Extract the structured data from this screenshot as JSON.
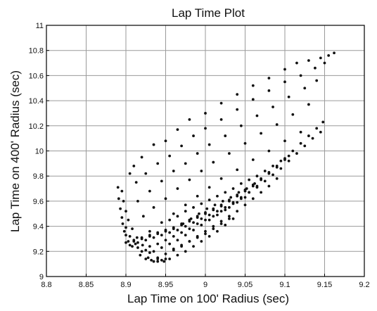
{
  "chart_data": {
    "type": "scatter",
    "title": "Lap Time Plot",
    "xlabel": "Lap Time on 100' Radius (sec)",
    "ylabel": "Lap Time on 400' Radius (sec)",
    "xlim": [
      8.8,
      9.2
    ],
    "ylim": [
      9.0,
      11.0
    ],
    "grid": true,
    "legend": "none",
    "x_ticks": [
      "8.8",
      "8.85",
      "8.9",
      "8.95",
      "9",
      "9.05",
      "9.1",
      "9.15",
      "9.2"
    ],
    "y_ticks": [
      "9",
      "9.2",
      "9.4",
      "9.6",
      "9.8",
      "10",
      "10.2",
      "10.4",
      "10.6",
      "10.8",
      "11"
    ],
    "marker_color": "#111111",
    "series": [
      {
        "points": [
          [
            8.89,
            9.71
          ],
          [
            8.891,
            9.62
          ],
          [
            8.893,
            9.54
          ],
          [
            8.895,
            9.47
          ],
          [
            8.9,
            9.39
          ],
          [
            8.905,
            9.32
          ],
          [
            8.912,
            9.26
          ],
          [
            8.92,
            9.2
          ],
          [
            8.928,
            9.15
          ],
          [
            8.935,
            9.12
          ],
          [
            8.895,
            9.68
          ],
          [
            8.897,
            9.6
          ],
          [
            8.9,
            9.52
          ],
          [
            8.903,
            9.45
          ],
          [
            8.908,
            9.38
          ],
          [
            8.914,
            9.31
          ],
          [
            8.921,
            9.25
          ],
          [
            8.93,
            9.19
          ],
          [
            8.94,
            9.14
          ],
          [
            8.948,
            9.12
          ],
          [
            8.905,
            9.82
          ],
          [
            8.91,
            9.88
          ],
          [
            8.92,
            9.95
          ],
          [
            8.935,
            10.05
          ],
          [
            8.95,
            10.08
          ],
          [
            8.965,
            10.17
          ],
          [
            8.98,
            10.25
          ],
          [
            9.0,
            10.3
          ],
          [
            9.02,
            10.38
          ],
          [
            9.04,
            10.45
          ],
          [
            9.06,
            10.52
          ],
          [
            9.08,
            10.58
          ],
          [
            9.1,
            10.65
          ],
          [
            9.115,
            10.7
          ],
          [
            9.13,
            10.72
          ],
          [
            9.145,
            10.74
          ],
          [
            9.155,
            10.76
          ],
          [
            9.162,
            10.78
          ],
          [
            8.913,
            9.75
          ],
          [
            8.925,
            9.82
          ],
          [
            8.94,
            9.9
          ],
          [
            8.955,
            9.96
          ],
          [
            8.97,
            10.04
          ],
          [
            8.985,
            10.12
          ],
          [
            9.0,
            10.18
          ],
          [
            9.02,
            10.25
          ],
          [
            9.04,
            10.33
          ],
          [
            9.06,
            10.41
          ],
          [
            9.08,
            10.48
          ],
          [
            9.1,
            10.55
          ],
          [
            9.12,
            10.6
          ],
          [
            9.138,
            10.66
          ],
          [
            9.15,
            10.7
          ],
          [
            8.915,
            9.6
          ],
          [
            8.93,
            9.68
          ],
          [
            8.945,
            9.76
          ],
          [
            8.96,
            9.84
          ],
          [
            8.975,
            9.9
          ],
          [
            8.99,
            9.98
          ],
          [
            9.005,
            10.05
          ],
          [
            9.025,
            10.12
          ],
          [
            9.045,
            10.2
          ],
          [
            9.065,
            10.28
          ],
          [
            9.085,
            10.35
          ],
          [
            9.105,
            10.43
          ],
          [
            9.125,
            10.5
          ],
          [
            9.14,
            10.56
          ],
          [
            8.922,
            9.48
          ],
          [
            8.935,
            9.55
          ],
          [
            8.95,
            9.62
          ],
          [
            8.965,
            9.7
          ],
          [
            8.98,
            9.77
          ],
          [
            8.995,
            9.84
          ],
          [
            9.01,
            9.91
          ],
          [
            9.03,
            9.98
          ],
          [
            9.05,
            10.06
          ],
          [
            9.07,
            10.14
          ],
          [
            9.09,
            10.21
          ],
          [
            9.11,
            10.29
          ],
          [
            9.13,
            10.37
          ],
          [
            8.93,
            9.36
          ],
          [
            8.945,
            9.43
          ],
          [
            8.96,
            9.5
          ],
          [
            8.975,
            9.57
          ],
          [
            8.99,
            9.64
          ],
          [
            9.005,
            9.71
          ],
          [
            9.02,
            9.78
          ],
          [
            9.04,
            9.85
          ],
          [
            9.06,
            9.93
          ],
          [
            9.08,
            10.0
          ],
          [
            9.1,
            10.08
          ],
          [
            9.12,
            10.15
          ],
          [
            8.9,
            9.27
          ],
          [
            8.91,
            9.29
          ],
          [
            8.92,
            9.31
          ],
          [
            8.93,
            9.33
          ],
          [
            8.94,
            9.35
          ],
          [
            8.95,
            9.37
          ],
          [
            8.96,
            9.39
          ],
          [
            8.97,
            9.42
          ],
          [
            8.98,
            9.45
          ],
          [
            8.99,
            9.48
          ],
          [
            9.0,
            9.51
          ],
          [
            9.01,
            9.54
          ],
          [
            9.02,
            9.57
          ],
          [
            9.03,
            9.61
          ],
          [
            9.04,
            9.65
          ],
          [
            9.05,
            9.69
          ],
          [
            9.06,
            9.73
          ],
          [
            9.07,
            9.78
          ],
          [
            9.08,
            9.83
          ],
          [
            9.09,
            9.88
          ],
          [
            9.1,
            9.94
          ],
          [
            9.11,
            10.0
          ],
          [
            9.12,
            10.06
          ],
          [
            9.13,
            10.12
          ],
          [
            9.14,
            10.18
          ],
          [
            9.148,
            10.23
          ],
          [
            8.905,
            9.25
          ],
          [
            8.915,
            9.27
          ],
          [
            8.925,
            9.29
          ],
          [
            8.935,
            9.31
          ],
          [
            8.945,
            9.33
          ],
          [
            8.955,
            9.35
          ],
          [
            8.965,
            9.37
          ],
          [
            8.975,
            9.4
          ],
          [
            8.985,
            9.43
          ],
          [
            8.995,
            9.46
          ],
          [
            9.005,
            9.49
          ],
          [
            9.015,
            9.52
          ],
          [
            9.025,
            9.55
          ],
          [
            9.035,
            9.59
          ],
          [
            9.045,
            9.63
          ],
          [
            9.055,
            9.67
          ],
          [
            9.065,
            9.71
          ],
          [
            9.075,
            9.76
          ],
          [
            9.085,
            9.81
          ],
          [
            9.095,
            9.86
          ],
          [
            9.105,
            9.92
          ],
          [
            9.115,
            9.98
          ],
          [
            9.125,
            10.04
          ],
          [
            9.135,
            10.1
          ],
          [
            9.145,
            10.15
          ],
          [
            8.91,
            9.28
          ],
          [
            8.92,
            9.3
          ],
          [
            8.93,
            9.32
          ],
          [
            8.94,
            9.34
          ],
          [
            8.95,
            9.36
          ],
          [
            8.96,
            9.38
          ],
          [
            8.97,
            9.41
          ],
          [
            8.98,
            9.44
          ],
          [
            8.99,
            9.47
          ],
          [
            9.0,
            9.5
          ],
          [
            9.01,
            9.53
          ],
          [
            9.02,
            9.56
          ],
          [
            9.03,
            9.6
          ],
          [
            9.04,
            9.64
          ],
          [
            9.05,
            9.68
          ],
          [
            9.06,
            9.72
          ],
          [
            9.07,
            9.77
          ],
          [
            9.08,
            9.82
          ],
          [
            9.09,
            9.87
          ],
          [
            9.1,
            9.93
          ],
          [
            8.94,
            9.15
          ],
          [
            8.95,
            9.18
          ],
          [
            8.96,
            9.21
          ],
          [
            8.97,
            9.24
          ],
          [
            8.98,
            9.28
          ],
          [
            8.99,
            9.32
          ],
          [
            9.0,
            9.36
          ],
          [
            9.01,
            9.4
          ],
          [
            9.02,
            9.44
          ],
          [
            9.03,
            9.48
          ],
          [
            9.04,
            9.52
          ],
          [
            9.05,
            9.57
          ],
          [
            9.06,
            9.62
          ],
          [
            9.07,
            9.67
          ],
          [
            9.08,
            9.72
          ],
          [
            9.09,
            9.78
          ],
          [
            8.935,
            9.2
          ],
          [
            8.945,
            9.23
          ],
          [
            8.955,
            9.26
          ],
          [
            8.965,
            9.29
          ],
          [
            8.975,
            9.33
          ],
          [
            8.985,
            9.37
          ],
          [
            8.995,
            9.41
          ],
          [
            9.005,
            9.45
          ],
          [
            9.015,
            9.49
          ],
          [
            9.025,
            9.53
          ],
          [
            9.035,
            9.58
          ],
          [
            9.045,
            9.62
          ],
          [
            9.055,
            9.67
          ],
          [
            9.065,
            9.72
          ],
          [
            8.93,
            9.24
          ],
          [
            8.94,
            9.26
          ],
          [
            8.95,
            9.29
          ],
          [
            8.96,
            9.32
          ],
          [
            8.97,
            9.35
          ],
          [
            8.98,
            9.38
          ],
          [
            8.99,
            9.42
          ],
          [
            9.0,
            9.45
          ],
          [
            9.01,
            9.48
          ],
          [
            9.02,
            9.52
          ],
          [
            9.03,
            9.55
          ],
          [
            9.04,
            9.59
          ],
          [
            9.05,
            9.63
          ],
          [
            8.955,
            9.14
          ],
          [
            8.965,
            9.17
          ],
          [
            8.975,
            9.2
          ],
          [
            8.985,
            9.24
          ],
          [
            8.995,
            9.28
          ],
          [
            9.005,
            9.32
          ],
          [
            9.015,
            9.36
          ],
          [
            9.025,
            9.41
          ],
          [
            9.035,
            9.46
          ],
          [
            8.96,
            9.22
          ],
          [
            8.97,
            9.25
          ],
          [
            8.98,
            9.28
          ],
          [
            8.99,
            9.31
          ],
          [
            9.0,
            9.34
          ],
          [
            9.01,
            9.38
          ],
          [
            9.02,
            9.42
          ],
          [
            9.03,
            9.46
          ],
          [
            8.915,
            9.23
          ],
          [
            8.925,
            9.21
          ],
          [
            8.918,
            9.17
          ],
          [
            8.925,
            9.14
          ],
          [
            8.932,
            9.13
          ],
          [
            8.94,
            9.12
          ],
          [
            8.945,
            9.13
          ],
          [
            8.95,
            9.14
          ],
          [
            8.908,
            9.24
          ],
          [
            8.903,
            9.28
          ],
          [
            8.9,
            9.33
          ],
          [
            8.898,
            9.36
          ],
          [
            8.896,
            9.42
          ],
          [
            8.955,
            9.45
          ],
          [
            8.965,
            9.48
          ],
          [
            8.975,
            9.52
          ],
          [
            8.985,
            9.55
          ],
          [
            8.995,
            9.58
          ],
          [
            9.005,
            9.61
          ],
          [
            9.015,
            9.64
          ],
          [
            9.025,
            9.67
          ],
          [
            9.035,
            9.7
          ],
          [
            9.045,
            9.74
          ],
          [
            9.055,
            9.77
          ],
          [
            9.065,
            9.8
          ],
          [
            9.075,
            9.84
          ],
          [
            9.085,
            9.88
          ],
          [
            9.095,
            9.92
          ],
          [
            9.105,
            9.96
          ],
          [
            8.972,
            9.42
          ],
          [
            8.982,
            9.46
          ],
          [
            8.992,
            9.5
          ],
          [
            9.002,
            9.54
          ],
          [
            9.012,
            9.57
          ],
          [
            9.022,
            9.6
          ],
          [
            9.032,
            9.63
          ],
          [
            9.042,
            9.67
          ],
          [
            9.052,
            9.7
          ],
          [
            9.062,
            9.74
          ]
        ]
      }
    ]
  }
}
